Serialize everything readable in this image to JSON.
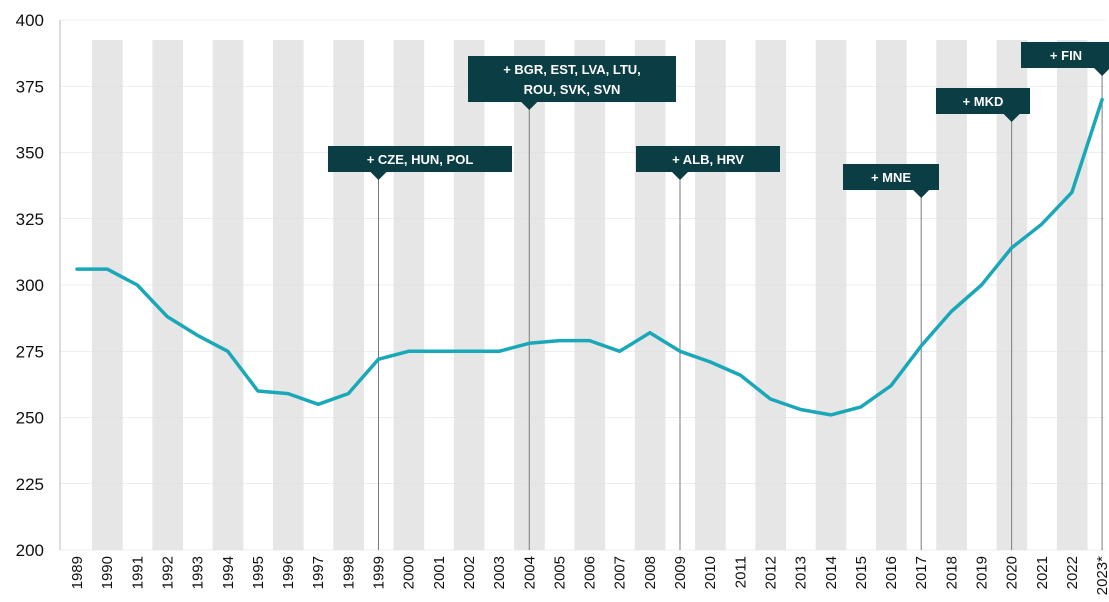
{
  "chart_data": {
    "type": "line",
    "title": "",
    "xlabel": "",
    "ylabel": "",
    "ylim": [
      200,
      400
    ],
    "yticks": [
      200,
      225,
      250,
      275,
      300,
      325,
      350,
      375,
      400
    ],
    "grid": "alternating vertical bands",
    "categories": [
      "1989",
      "1990",
      "1991",
      "1992",
      "1993",
      "1994",
      "1995",
      "1996",
      "1997",
      "1998",
      "1999",
      "2000",
      "2001",
      "2002",
      "2003",
      "2004",
      "2005",
      "2006",
      "2007",
      "2008",
      "2009",
      "2010",
      "2011",
      "2012",
      "2013",
      "2014",
      "2015",
      "2016",
      "2017",
      "2018",
      "2019",
      "2020",
      "2021",
      "2022",
      "2023*"
    ],
    "series": [
      {
        "color": "#1aa8b8",
        "values": [
          306,
          306,
          300,
          288,
          281,
          275,
          260,
          259,
          255,
          259,
          272,
          275,
          275,
          275,
          275,
          278,
          279,
          279,
          275,
          282,
          275,
          271,
          266,
          257,
          253,
          251,
          254,
          262,
          277,
          290,
          300,
          314,
          323,
          335,
          370
        ]
      }
    ],
    "annotations": [
      {
        "year": "1999",
        "lines": [
          "+ CZE, HUN, POL"
        ]
      },
      {
        "year": "2004",
        "lines": [
          "+ BGR, EST, LVA, LTU,",
          "ROU, SVK, SVN"
        ]
      },
      {
        "year": "2009",
        "lines": [
          "+ ALB, HRV"
        ]
      },
      {
        "year": "2017",
        "lines": [
          "+ MNE"
        ]
      },
      {
        "year": "2020",
        "lines": [
          "+ MKD"
        ]
      },
      {
        "year": "2023*",
        "lines": [
          "+ FIN"
        ]
      }
    ],
    "band_color": "#e6e6e6",
    "annotation_color": "#0b3d44"
  }
}
